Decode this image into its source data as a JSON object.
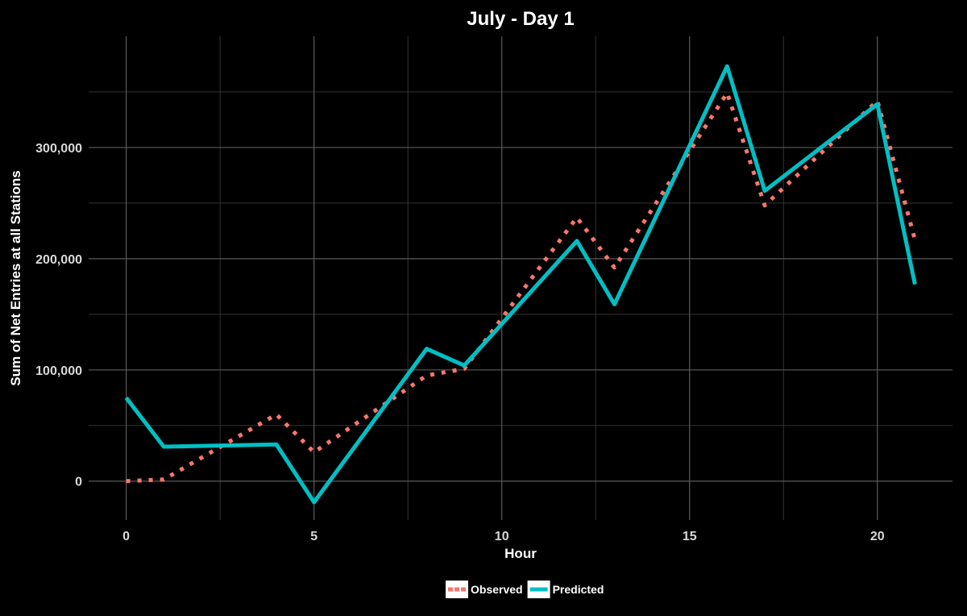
{
  "chart_data": {
    "type": "line",
    "title": "July - Day 1",
    "xlabel": "Hour",
    "ylabel": "Sum of Net Entries at all Stations",
    "xlim": [
      -1,
      22
    ],
    "ylim": [
      -35000,
      400000
    ],
    "x_ticks": [
      0,
      5,
      10,
      15,
      20
    ],
    "x_tick_labels": [
      "0",
      "5",
      "10",
      "15",
      "20"
    ],
    "y_ticks": [
      0,
      100000,
      200000,
      300000
    ],
    "y_tick_labels": [
      "0",
      "100,000",
      "200,000",
      "300,000"
    ],
    "grid": true,
    "legend_position": "bottom",
    "series": [
      {
        "name": "Observed",
        "style": "dotted",
        "color": "#F8766D",
        "x": [
          0,
          1,
          4,
          5,
          8,
          9,
          12,
          13,
          16,
          17,
          20,
          21
        ],
        "y": [
          0,
          1500,
          60000,
          26000,
          95000,
          101000,
          237000,
          192000,
          349000,
          248000,
          342000,
          217000
        ]
      },
      {
        "name": "Predicted",
        "style": "solid",
        "color": "#00BFC4",
        "x": [
          0,
          1,
          4,
          5,
          8,
          9,
          12,
          13,
          16,
          17,
          20,
          21
        ],
        "y": [
          75000,
          31000,
          33000,
          -19000,
          119000,
          104000,
          216000,
          159000,
          373000,
          261000,
          339000,
          177000
        ]
      }
    ]
  }
}
